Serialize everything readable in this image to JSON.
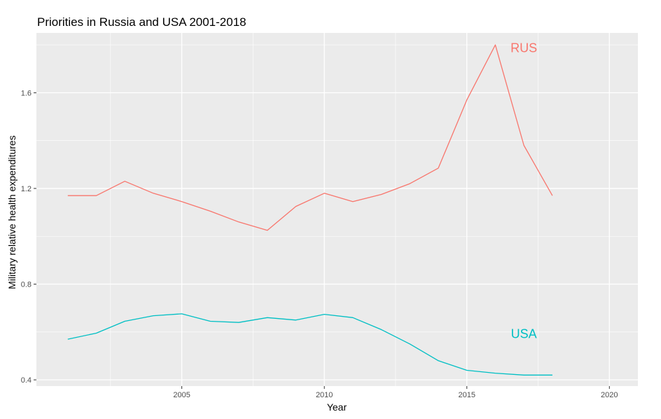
{
  "chart_data": {
    "type": "line",
    "title": "Priorities in Russia and USA 2001-2018",
    "xlabel": "Year",
    "ylabel": "Military relative health expenditures",
    "xlim": [
      1999.9,
      2021.0
    ],
    "ylim": [
      0.374,
      1.85
    ],
    "x_ticks": [
      2005,
      2010,
      2015,
      2020
    ],
    "y_ticks": [
      0.4,
      0.8,
      1.2,
      1.6
    ],
    "x_tick_labels": [
      "2005",
      "2010",
      "2015",
      "2020"
    ],
    "y_tick_labels": [
      "0.4",
      "0.8",
      "1.2",
      "1.6"
    ],
    "grid": true,
    "legend": "none (direct labels)",
    "background": "#ebebeb",
    "x": [
      2001,
      2002,
      2003,
      2004,
      2005,
      2006,
      2007,
      2008,
      2009,
      2010,
      2011,
      2012,
      2013,
      2014,
      2015,
      2016,
      2017,
      2018
    ],
    "series": [
      {
        "name": "RUS",
        "color": "#f8766d",
        "label_position": [
          2017,
          1.79
        ],
        "values": [
          1.17,
          1.17,
          1.23,
          1.18,
          1.145,
          1.105,
          1.06,
          1.025,
          1.125,
          1.18,
          1.145,
          1.175,
          1.22,
          1.285,
          1.57,
          1.8,
          1.38,
          1.17
        ]
      },
      {
        "name": "USA",
        "color": "#00bfc4",
        "label_position": [
          2017,
          0.595
        ],
        "values": [
          0.57,
          0.595,
          0.645,
          0.668,
          0.676,
          0.645,
          0.64,
          0.66,
          0.65,
          0.674,
          0.66,
          0.61,
          0.55,
          0.48,
          0.44,
          0.428,
          0.42,
          0.42
        ]
      }
    ]
  }
}
